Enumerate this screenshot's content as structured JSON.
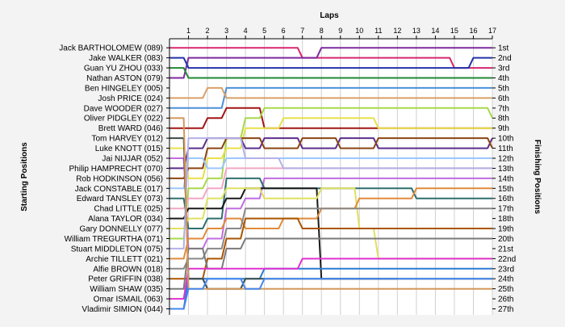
{
  "chart_data": {
    "type": "line",
    "title": "Laps",
    "ylabel_left": "Starting Positions",
    "ylabel_right": "Finishing Positions",
    "laps": [
      1,
      2,
      3,
      4,
      5,
      6,
      7,
      8,
      9,
      10,
      11,
      12,
      13,
      14,
      15,
      16,
      17
    ],
    "start_labels": [
      "Jack BARTHOLOMEW (089)",
      "Jake WALKER (083)",
      "Guan YU ZHOU (033)",
      "Nathan ASTON (079)",
      "Ben HINGELEY (005)",
      "Josh PRICE (024)",
      "Dave WOODER (027)",
      "Oliver PIDGLEY (022)",
      "Brett WARD (046)",
      "Tom HARVEY (012)",
      "Luke KNOTT (015)",
      "Jai NIJJAR (052)",
      "Philip HAMPRECHT (070)",
      "Rob HODKINSON (056)",
      "Jack CONSTABLE (017)",
      "Edward TANSLEY (073)",
      "Chad LITTLE (025)",
      "Alana TAYLOR (034)",
      "Gary DONNELLY (077)",
      "William TREGURTHA (071)",
      "Stuart MIDDLETON (075)",
      "Archie TILLETT (021)",
      "Alfie BROWN (018)",
      "Peter GRIFFIN (038)",
      "William SHAW (035)",
      "Omar ISMAIL (063)",
      "Vladimir SIMION (044)"
    ],
    "finish_labels": [
      "1st",
      "2nd",
      "3rd",
      "4th",
      "5th",
      "6th",
      "7th",
      "8th",
      "9th",
      "10th",
      "11th",
      "12th",
      "13th",
      "14th",
      "15th",
      "16th",
      "17th",
      "18th",
      "19th",
      "20th",
      "21st",
      "22nd",
      "23rd",
      "24th",
      "25th",
      "26th",
      "27th"
    ],
    "series": [
      {
        "color": "#d6266f",
        "positions": [
          1,
          1,
          1,
          1,
          1,
          1,
          1,
          2,
          2,
          2,
          2,
          2,
          2,
          2,
          2,
          3,
          3,
          3
        ]
      },
      {
        "color": "#7d2a9e",
        "positions": [
          4,
          2,
          2,
          2,
          2,
          2,
          2,
          2,
          1,
          1,
          1,
          1,
          1,
          1,
          1,
          1,
          1,
          1
        ]
      },
      {
        "color": "#2233aa",
        "positions": [
          2,
          3,
          3,
          3,
          3,
          3,
          3,
          3,
          3,
          3,
          3,
          3,
          3,
          3,
          3,
          3,
          2,
          2
        ]
      },
      {
        "color": "#228833",
        "positions": [
          3,
          4,
          4,
          4,
          4,
          4,
          4,
          4,
          4,
          4,
          4,
          4,
          4,
          4,
          4,
          4,
          4,
          4
        ]
      },
      {
        "color": "#4a90d9",
        "positions": [
          7,
          7,
          7,
          5,
          5,
          5,
          5,
          5,
          5,
          5,
          5,
          5,
          5,
          5,
          5,
          5,
          5,
          5
        ]
      },
      {
        "color": "#d9a066",
        "positions": [
          6,
          6,
          5,
          6,
          6,
          6,
          6,
          6,
          6,
          6,
          6,
          6,
          6,
          6,
          6,
          6,
          6,
          6
        ]
      },
      {
        "color": "#a01515",
        "positions": [
          9,
          9,
          8,
          7,
          7,
          9,
          9,
          9,
          9,
          9,
          9,
          9,
          9,
          9,
          9,
          9,
          9,
          9
        ]
      },
      {
        "color": "#a8d84a",
        "positions": [
          20,
          15,
          14,
          10,
          8,
          7,
          7,
          7,
          7,
          7,
          7,
          7,
          7,
          7,
          7,
          7,
          7,
          8
        ]
      },
      {
        "color": "#e8e04a",
        "positions": [
          11,
          14,
          12,
          11,
          9,
          9,
          8,
          8,
          8,
          8,
          8,
          9,
          9,
          9,
          9,
          9,
          9,
          9
        ]
      },
      {
        "color": "#5b2e8c",
        "positions": [
          13,
          11,
          10,
          10,
          11,
          10,
          10,
          11,
          11,
          10,
          10,
          11,
          11,
          11,
          11,
          11,
          11,
          10
        ]
      },
      {
        "color": "#8b4513",
        "positions": [
          14,
          13,
          11,
          10,
          10,
          11,
          11,
          10,
          10,
          11,
          11,
          10,
          10,
          10,
          10,
          10,
          10,
          11
        ]
      },
      {
        "color": "#9ac7ff",
        "positions": [
          15,
          12,
          13,
          12,
          12,
          12,
          12,
          12,
          12,
          12,
          12,
          12,
          12,
          12,
          12,
          12,
          12,
          12
        ]
      },
      {
        "color": "#f2a6c4",
        "positions": [
          17,
          16,
          15,
          13,
          13,
          13,
          13,
          13,
          13,
          13,
          13,
          13,
          13,
          13,
          13,
          13,
          13,
          13
        ]
      },
      {
        "color": "#c06de0",
        "positions": [
          12,
          21,
          20,
          17,
          16,
          14,
          14,
          14,
          14,
          14,
          14,
          14,
          14,
          14,
          14,
          14,
          14,
          14
        ]
      },
      {
        "color": "#2f6f6f",
        "positions": [
          16,
          19,
          18,
          14,
          14,
          15,
          15,
          15,
          15,
          15,
          15,
          15,
          15,
          16,
          16,
          16,
          16,
          16
        ]
      },
      {
        "color": "#1a1a1a",
        "positions": [
          18,
          17,
          17,
          16,
          15,
          15,
          15,
          15,
          24,
          24,
          24,
          24,
          24,
          null,
          null,
          null,
          null,
          null
        ]
      },
      {
        "color": "#e0e060",
        "positions": [
          19,
          18,
          16,
          15,
          15,
          16,
          16,
          16,
          15,
          15,
          19,
          22,
          22,
          22,
          22,
          22,
          22,
          22
        ]
      },
      {
        "color": "#e08a3a",
        "positions": [
          22,
          20,
          19,
          18,
          19,
          19,
          18,
          18,
          17,
          17,
          16,
          16,
          16,
          15,
          15,
          15,
          15,
          15
        ]
      },
      {
        "color": "#b3b0e8",
        "positions": [
          21,
          10,
          10,
          10,
          12,
          12,
          13,
          13,
          13,
          13,
          13,
          13,
          13,
          13,
          13,
          13,
          13,
          13
        ]
      },
      {
        "color": "#888888",
        "positions": [
          23,
          22,
          21,
          19,
          17,
          17,
          17,
          17,
          17,
          17,
          17,
          17,
          17,
          17,
          17,
          17,
          17,
          17
        ]
      },
      {
        "color": "#aa5500",
        "positions": [
          24,
          24,
          22,
          20,
          18,
          18,
          18,
          19,
          19,
          19,
          19,
          19,
          19,
          19,
          19,
          19,
          19,
          19
        ]
      },
      {
        "color": "#7a7a7a",
        "positions": [
          25,
          21,
          23,
          21,
          20,
          20,
          20,
          20,
          20,
          20,
          20,
          20,
          20,
          20,
          20,
          20,
          20,
          20
        ]
      },
      {
        "color": "#2a7bd4",
        "positions": [
          27,
          24,
          24,
          24,
          24,
          23,
          23,
          23,
          23,
          23,
          23,
          23,
          23,
          23,
          23,
          23,
          23,
          23
        ]
      },
      {
        "color": "#e030d0",
        "positions": [
          26,
          23,
          23,
          23,
          23,
          23,
          23,
          22,
          22,
          22,
          22,
          22,
          22,
          22,
          22,
          22,
          22,
          22
        ]
      },
      {
        "color": "#3a4a4a",
        "positions": [
          10,
          24,
          25,
          25,
          24,
          24,
          24,
          24,
          24,
          24,
          24,
          24,
          24,
          24,
          24,
          24,
          24,
          24
        ]
      },
      {
        "color": "#d4985a",
        "positions": [
          8,
          25,
          25,
          25,
          25,
          25,
          25,
          25,
          25,
          25,
          25,
          25,
          25,
          25,
          25,
          25,
          25,
          25
        ]
      },
      {
        "color": "#4488ee",
        "positions": [
          27,
          25,
          24,
          24,
          25,
          24,
          24,
          24,
          24,
          24,
          24,
          24,
          24,
          24,
          24,
          24,
          24,
          24
        ]
      }
    ]
  }
}
